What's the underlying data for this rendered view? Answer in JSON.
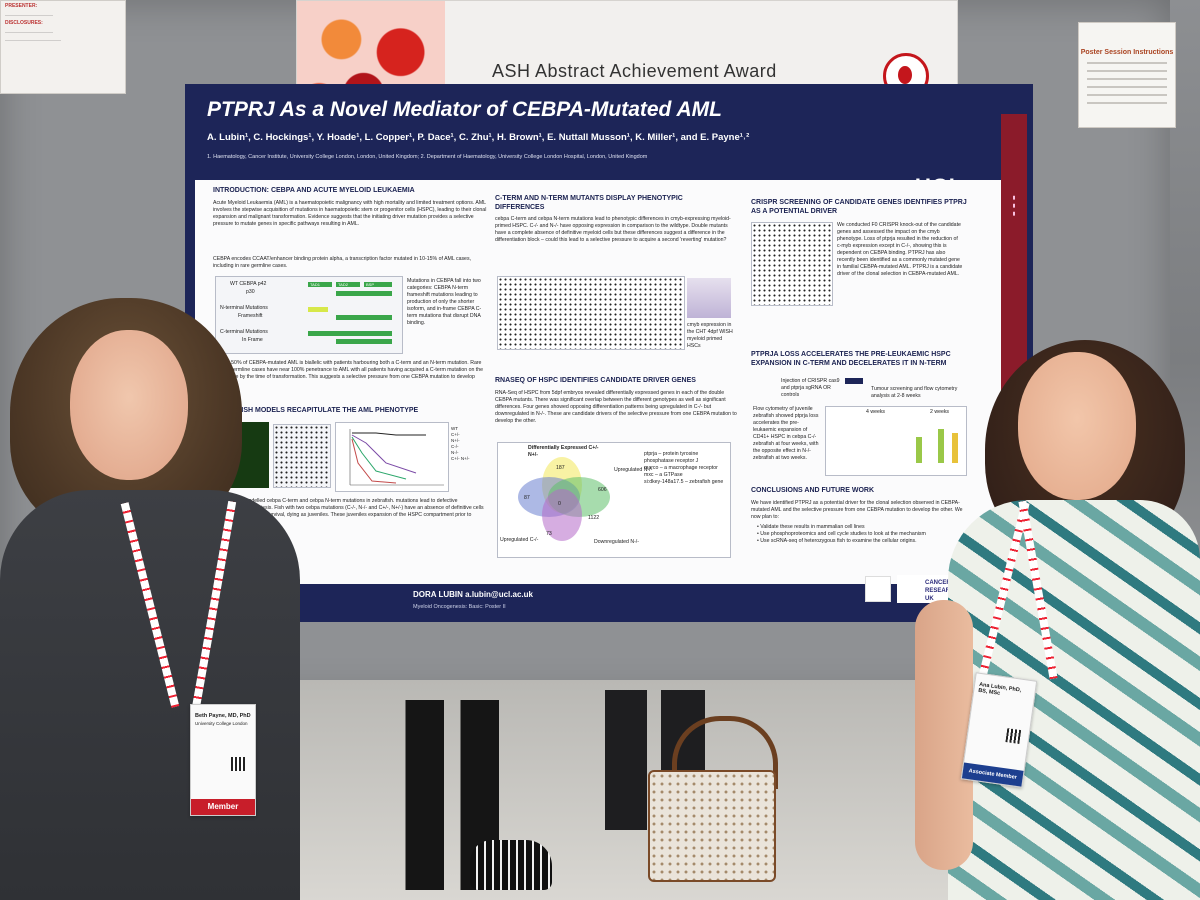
{
  "award_banner": {
    "title": "ASH Abstract Achievement Award"
  },
  "poster": {
    "title": "PTPRJ As a Novel Mediator of CEBPA-Mutated AML",
    "authors": "A. Lubin¹, C. Hockings¹, Y. Hoade¹, L. Copper¹, P. Dace¹, C. Zhu¹, H. Brown¹, E. Nuttall Musson¹, K. Miller¹, and E. Payne¹˒²",
    "affiliations": "1. Haematology, Cancer Institute, University College London, London, United Kingdom; 2. Department of Haematology, University College London Hospital, London, United Kingdom",
    "institution_logo": "UCL",
    "sections": {
      "intro_heading": "INTRODUCTION: CEBPA AND ACUTE MYELOID LEUKAEMIA",
      "intro_text": "Acute Myeloid Leukaemia (AML) is a haematopoietic malignancy with high mortality and limited treatment options. AML involves the stepwise acquisition of mutations in haematopoietic stem or progenitor cells (HSPC), leading to their clonal expansion and malignant transformation. Evidence suggests that the initiating driver mutation provides a selective pressure to mutate genes in specific pathways resulting in AML.",
      "cebpa_text": "CEBPA encodes CCAAT/enhancer binding protein alpha, a transcription factor mutated in 10-15% of AML cases, including in rare germline cases.",
      "diagram_labels": [
        "WT CEBPA p42",
        "p30",
        "N-terminal Mutations",
        "Frameshift",
        "C-terminal Mutations",
        "In Frame"
      ],
      "domain_labels": [
        "TAD1",
        "TAD2",
        "BSP"
      ],
      "mutation_text": "Mutations in CEBPA fall into two categories: CEBPA N-term frameshift mutations leading to production of only the shorter isoform, and in-frame CEBPA C-term mutations that disrupt DNA binding.",
      "biallelic_text": "Around 50% of CEBPA-mutated AML is biallelic with patients harbouring both a C-term and an N-term mutation. Rare N-term germline cases have near 100% penetrance to AML with all patients having acquired a C-term mutation on the other allele by the time of transformation. This suggests a selective pressure from one CEBPA mutation to develop another.",
      "zebrafish_heading": "ZEBRAFISH MODELS RECAPITULATE THE AML PHENOTYPE",
      "survival_legend": [
        "WT",
        "C+/-",
        "N+/-",
        "C-/-",
        "N-/-",
        "C+/- N+/-"
      ],
      "survival_axis": {
        "y": "Survival",
        "x": "Days",
        "x_ticks": [
          "0",
          "20",
          "40",
          "60",
          "80"
        ]
      },
      "zebrafish_text": "We modelled cebpa C-term and cebpa N-term mutations in zebrafish. mutations lead to defective haematopoiesis. Fish with two cebpa mutations (C-/-, N-/- and C+/-, N+/-) have an absence of definitive cells and impaired survival, dying as juveniles. These juveniles expansion of the HSPC compartment prior to death.",
      "cterm_heading": "C-TERM AND N-TERM MUTANTS DISPLAY PHENOTYPIC DIFFERENCES",
      "cterm_text": "cebpa C-term and cebpa N-term mutations lead to phenotypic differences in cmyb-expressing myeloid-primed HSPC. C-/- and N-/- have opposing expression in comparison to the wildtype. Double mutants have a complete absence of definitive myeloid cells but these differences suggest a difference in the differentiation block – could this lead to a selective pressure to acquire a second 'reverting' mutation?",
      "cmyb_caption": "cmyb expression in the CHT 4dpf WISH myeloid primed HSCs",
      "rnaseq_heading": "RNASEQ OF HSPC IDENTIFIES CANDIDATE DRIVER GENES",
      "rnaseq_text": "RNA-Seq of HSPC from 5dpf embryos revealed differentially expressed genes in each of the double CEBPA mutants. There was significant overlap between the different genotypes as well as significant differences. Four genes showed opposing differentiation patterns being upregulated in C-/- but downregulated in N-/-. These are candidate drivers of the selective pressure from one CEBPA mutation to develop the other.",
      "venn_labels": [
        "Differentially Expressed C+/- N+/-",
        "Upregulated N-/-",
        "Upregulated C-/-",
        "Downregulated N-/-"
      ],
      "venn_counts": [
        "187",
        "87",
        "606",
        "73",
        "1122",
        "0"
      ],
      "gene_list": [
        "ptprja – protein tyrosine phosphatase receptor J",
        "marco – a macrophage receptor",
        "mxc – a GTPase",
        "si:dkey-148a17.5 – zebrafish gene"
      ],
      "crispr_heading": "CRISPR SCREENING OF CANDIDATE GENES IDENTIFIES PTPRJ AS A POTENTIAL DRIVER",
      "crispr_text": "We conducted F0 CRISPR knock-out of the candidate genes and assessed the impact on the cmyb phenotype. Loss of ptprja resulted in the reduction of c-myb expression except in C-/-, showing this is dependent on CEBPA binding. PTPRJ has also recently been identified as a commonly mutated gene in familial CEBPA-mutated AML. PTPRJ is a candidate driver of the clonal selection in CEBPA-mutated AML.",
      "crispr_caption": "cmyb expression in the CHT 4dpf WISH",
      "crispr_axis": [
        "control",
        "ptprja KO"
      ],
      "preleuk_heading": "PTPRJA LOSS ACCELERATES THE PRE-LEUKAEMIC HSPC EXPANSION IN C-TERM AND DECELERATES IT IN N-TERM",
      "injection_label": "Injection of CRISPR cas9 and ptprja sgRNA OR controls",
      "tumour_label": "Tumour screening and flow cytometry analysis at 2-8 weeks",
      "flow_text": "Flow cytometry of juvenile zebrafish showed ptprja loss accelerates the pre-leukaemic expansion of CD41+ HSPC in cebpa C-/- zebrafish at four weeks, with the opposite effect in N-/- zebrafish at two weeks.",
      "week_labels": [
        "4 weeks",
        "2 weeks"
      ],
      "conclusions_heading": "CONCLUSIONS AND FUTURE WORK",
      "conclusions_text": "We have identified PTPRJ as a potential driver for the clonal selection observed in CEBPA-mutated AML and the selective pressure from one CEBPA mutation to develop the other. We now plan to:",
      "future_work": [
        "Validate these results in mammalian cell lines",
        "Use phosphoproteomics and cell cycle studies to look at the mechanism",
        "Use scRNA-seq of heterozygous fish to examine the cellular origins."
      ]
    },
    "contact": "DORA LUBIN a.lubin@ucl.ac.uk",
    "session": "Myeloid Oncogenesis: Basic: Poster II",
    "sponsor": "CANCER RESEARCH UK"
  },
  "instructions_sign": {
    "title": "Poster Session Instructions"
  },
  "badges": {
    "left": {
      "name": "Beth Payne, MD, PhD",
      "org": "University College London",
      "role": "Member"
    },
    "right": {
      "name": "Ana Lubin, PhD, BS, MSc",
      "role": "Associate Member"
    }
  }
}
